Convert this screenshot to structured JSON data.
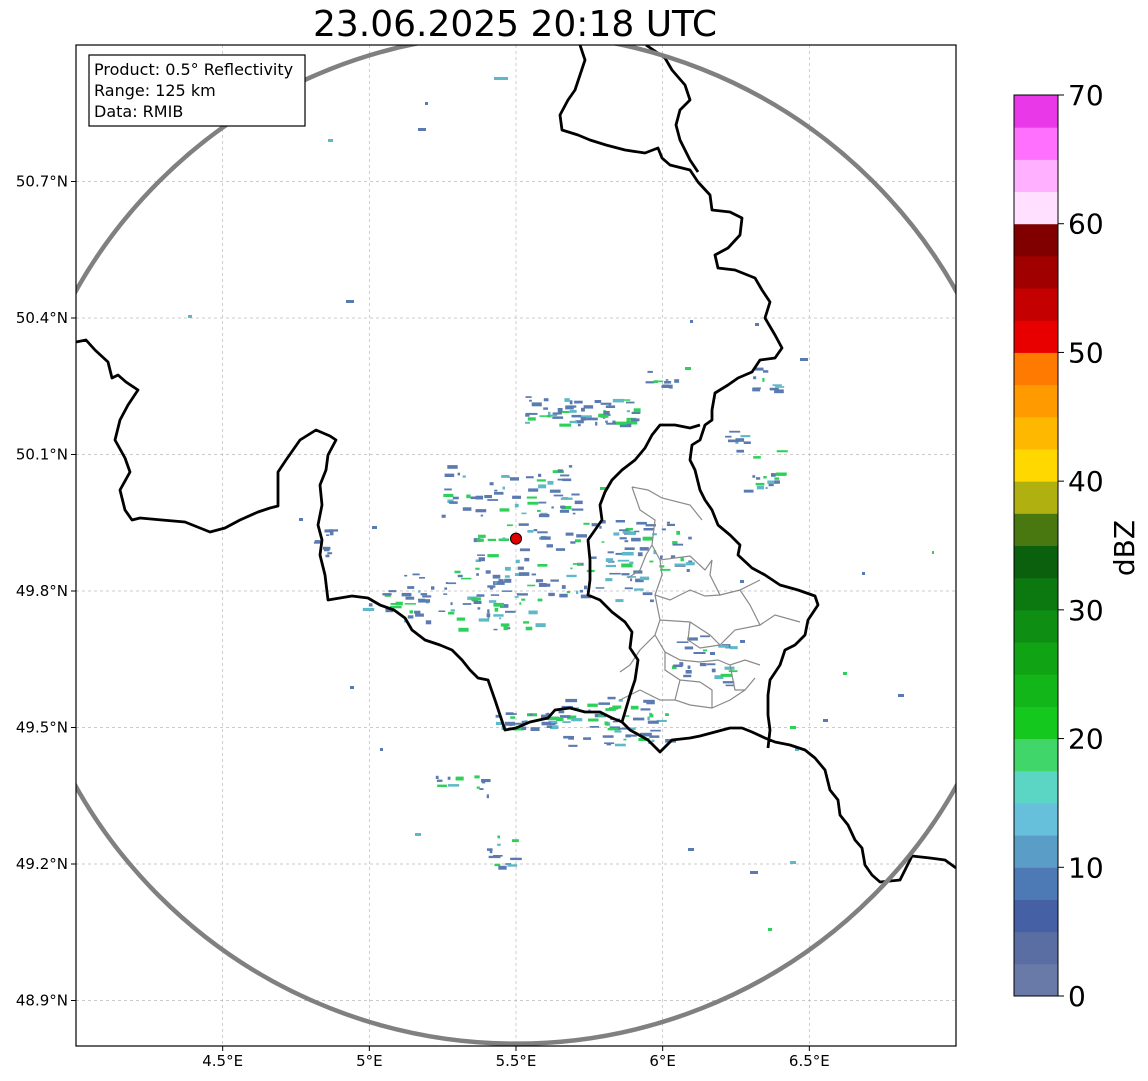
{
  "title": "23.06.2025 20:18 UTC",
  "info_box": {
    "line1": "Product: 0.5° Reflectivity",
    "line2": "Range: 125 km",
    "line3": "Data: RMIB"
  },
  "map": {
    "lon_range": [
      4.0,
      7.0
    ],
    "lat_range": [
      48.8,
      51.0
    ],
    "grid": true,
    "radar_site": {
      "lon": 5.5,
      "lat": 49.915
    },
    "x_ticks": [
      {
        "lon": 4.5,
        "label": "4.5°E"
      },
      {
        "lon": 5.0,
        "label": "5°E"
      },
      {
        "lon": 5.5,
        "label": "5.5°E"
      },
      {
        "lon": 6.0,
        "label": "6°E"
      },
      {
        "lon": 6.5,
        "label": "6.5°E"
      }
    ],
    "y_ticks": [
      {
        "lat": 50.7,
        "label": "50.7°N"
      },
      {
        "lat": 50.4,
        "label": "50.4°N"
      },
      {
        "lat": 50.1,
        "label": "50.1°N"
      },
      {
        "lat": 49.8,
        "label": "49.8°N"
      },
      {
        "lat": 49.5,
        "label": "49.5°N"
      },
      {
        "lat": 49.2,
        "label": "49.2°N"
      },
      {
        "lat": 48.9,
        "label": "48.9°N"
      }
    ],
    "colors": {
      "border": "#000000",
      "range_ring": "#808080",
      "admin": "#8a8a8a",
      "radar_marker": "#e00000",
      "echo_light": "#5b7bb0",
      "echo_mid": "#5fb8c8",
      "echo_green": "#2fd05a"
    }
  },
  "colorbar": {
    "label": "dBZ",
    "min": 0,
    "max": 70,
    "ticks": [
      "0",
      "10",
      "20",
      "30",
      "40",
      "50",
      "60",
      "70"
    ],
    "colors": [
      "#6a7aa8",
      "#5a6ea4",
      "#4560a4",
      "#4d7ab4",
      "#5a9ec8",
      "#66c0dc",
      "#5cd6c4",
      "#40d66a",
      "#14c81e",
      "#12b618",
      "#10a414",
      "#0e8e12",
      "#0c7810",
      "#0a600c",
      "#4a7810",
      "#b0b010",
      "#ffd800",
      "#ffb800",
      "#ff9a00",
      "#ff7a00",
      "#e80000",
      "#c40000",
      "#a00000",
      "#800000",
      "#ffe0ff",
      "#ffb0ff",
      "#ff70ff",
      "#e838e8"
    ]
  }
}
